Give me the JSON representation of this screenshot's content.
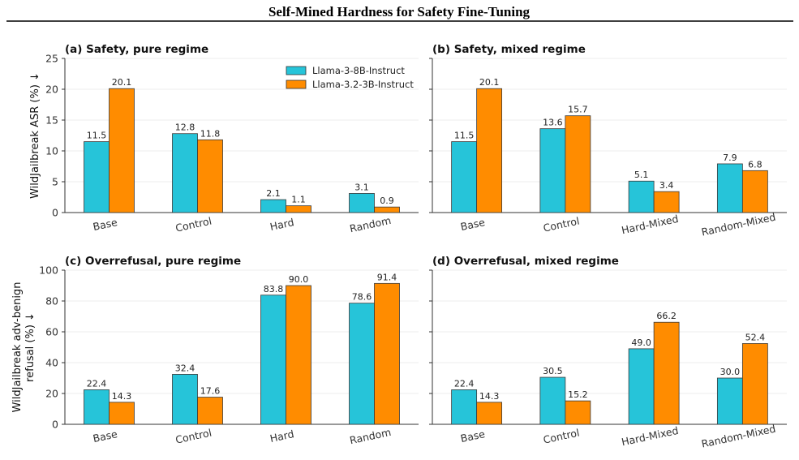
{
  "title": "Self-Mined Hardness for Safety Fine-Tuning",
  "legend": {
    "position": "top-right of panel (a)",
    "entries": [
      {
        "name": "Llama-3-8B-Instruct",
        "color": "#26C4D9"
      },
      {
        "name": "Llama-3.2-3B-Instruct",
        "color": "#FF8C00"
      }
    ]
  },
  "row_ylabels": {
    "top": "WildJailbreak ASR (%) ↓",
    "bottom_line1": "WildJailbreak adv-benign",
    "bottom_line2": "refusal (%) ↓"
  },
  "chart_data": [
    {
      "type": "bar",
      "title": "(a) Safety, pure regime",
      "categories": [
        "Base",
        "Control",
        "Hard",
        "Random"
      ],
      "series": [
        {
          "name": "Llama-3-8B-Instruct",
          "values": [
            11.5,
            12.8,
            2.1,
            3.1
          ]
        },
        {
          "name": "Llama-3.2-3B-Instruct",
          "values": [
            20.1,
            11.8,
            1.1,
            0.9
          ]
        }
      ],
      "ylabel": "WildJailbreak ASR (%) ↓",
      "ylim": [
        0,
        25
      ],
      "yticks": [
        0,
        5,
        10,
        15,
        20,
        25
      ],
      "grid": "y"
    },
    {
      "type": "bar",
      "title": "(b) Safety, mixed regime",
      "categories": [
        "Base",
        "Control",
        "Hard-Mixed",
        "Random-Mixed"
      ],
      "series": [
        {
          "name": "Llama-3-8B-Instruct",
          "values": [
            11.5,
            13.6,
            5.1,
            7.9
          ]
        },
        {
          "name": "Llama-3.2-3B-Instruct",
          "values": [
            20.1,
            15.7,
            3.4,
            6.8
          ]
        }
      ],
      "ylim": [
        0,
        25
      ],
      "yticks": [
        0,
        5,
        10,
        15,
        20,
        25
      ],
      "grid": "y"
    },
    {
      "type": "bar",
      "title": "(c) Overrefusal, pure regime",
      "categories": [
        "Base",
        "Control",
        "Hard",
        "Random"
      ],
      "series": [
        {
          "name": "Llama-3-8B-Instruct",
          "values": [
            22.4,
            32.4,
            83.8,
            78.6
          ]
        },
        {
          "name": "Llama-3.2-3B-Instruct",
          "values": [
            14.3,
            17.6,
            90.0,
            91.4
          ]
        }
      ],
      "ylabel": "WildJailbreak adv-benign refusal (%) ↓",
      "ylim": [
        0,
        100
      ],
      "yticks": [
        0,
        20,
        40,
        60,
        80,
        100
      ],
      "grid": "y"
    },
    {
      "type": "bar",
      "title": "(d) Overrefusal, mixed regime",
      "categories": [
        "Base",
        "Control",
        "Hard-Mixed",
        "Random-Mixed"
      ],
      "series": [
        {
          "name": "Llama-3-8B-Instruct",
          "values": [
            22.4,
            30.5,
            49.0,
            30.0
          ]
        },
        {
          "name": "Llama-3.2-3B-Instruct",
          "values": [
            14.3,
            15.2,
            66.2,
            52.4
          ]
        }
      ],
      "ylim": [
        0,
        100
      ],
      "yticks": [
        0,
        20,
        40,
        60,
        80,
        100
      ],
      "grid": "y"
    }
  ]
}
